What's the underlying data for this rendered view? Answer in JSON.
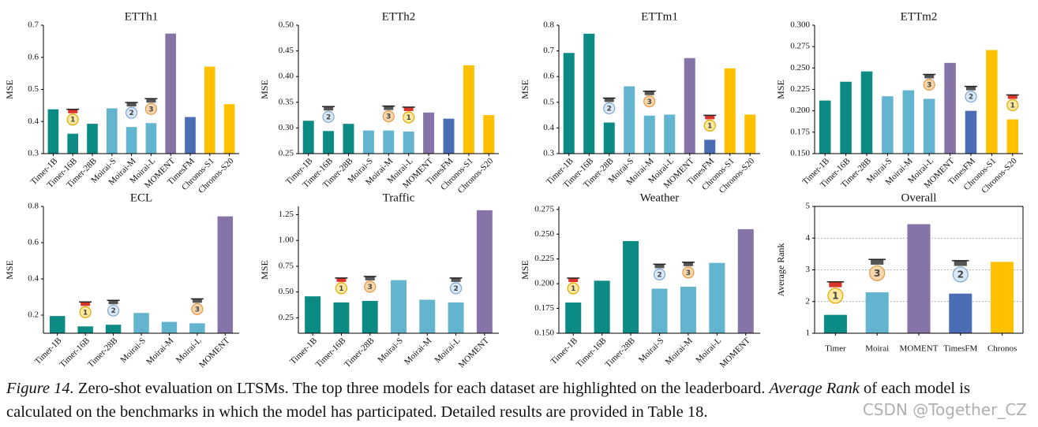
{
  "chart_data": [
    {
      "type": "bar",
      "title": "ETTh1",
      "ylabel": "MSE",
      "categories": [
        "Timer-1B",
        "Timer-16B",
        "Timer-28B",
        "Moirai-S",
        "Moirai-M",
        "Moirai-L",
        "MOMENT",
        "TimesFM",
        "Chronos-S1",
        "Chronos-S20"
      ],
      "values": [
        0.438,
        0.362,
        0.393,
        0.441,
        0.383,
        0.395,
        0.674,
        0.414,
        0.571,
        0.454
      ],
      "colors": [
        "#0b8b84",
        "#0b8b84",
        "#0b8b84",
        "#62b4cf",
        "#62b4cf",
        "#62b4cf",
        "#8673a8",
        "#4a6db4",
        "#ffc000",
        "#ffc000"
      ],
      "medals": [
        null,
        1,
        null,
        null,
        2,
        3,
        null,
        null,
        null,
        null
      ],
      "ylim": [
        0.3,
        0.7
      ],
      "yticks": [
        0.3,
        0.4,
        0.5,
        0.6,
        0.7
      ],
      "grid": false
    },
    {
      "type": "bar",
      "title": "ETTh2",
      "ylabel": "MSE",
      "categories": [
        "Timer-1B",
        "Timer-16B",
        "Timer-28B",
        "Moirai-S",
        "Moirai-M",
        "Moirai-L",
        "MOMENT",
        "TimesFM",
        "Chronos-S1",
        "Chronos-S20"
      ],
      "values": [
        0.314,
        0.294,
        0.308,
        0.295,
        0.295,
        0.293,
        0.33,
        0.318,
        0.422,
        0.325
      ],
      "colors": [
        "#0b8b84",
        "#0b8b84",
        "#0b8b84",
        "#62b4cf",
        "#62b4cf",
        "#62b4cf",
        "#8673a8",
        "#4a6db4",
        "#ffc000",
        "#ffc000"
      ],
      "medals": [
        null,
        2,
        null,
        null,
        3,
        1,
        null,
        null,
        null,
        null
      ],
      "ylim": [
        0.25,
        0.5
      ],
      "yticks": [
        0.25,
        {
          "value": 0.3,
          "label": "0.30"
        },
        0.35,
        {
          "value": 0.4,
          "label": "0.40"
        },
        0.45,
        {
          "value": 0.5,
          "label": "0.50"
        }
      ],
      "grid": false
    },
    {
      "type": "bar",
      "title": "ETTm1",
      "ylabel": "MSE",
      "categories": [
        "Timer-1B",
        "Timer-16B",
        "Timer-28B",
        "Moirai-S",
        "Moirai-M",
        "Moirai-L",
        "MOMENT",
        "TimesFM",
        "Chronos-S1",
        "Chronos-S20"
      ],
      "values": [
        0.692,
        0.767,
        0.421,
        0.562,
        0.448,
        0.452,
        0.672,
        0.354,
        0.632,
        0.452
      ],
      "colors": [
        "#0b8b84",
        "#0b8b84",
        "#0b8b84",
        "#62b4cf",
        "#62b4cf",
        "#62b4cf",
        "#8673a8",
        "#4a6db4",
        "#ffc000",
        "#ffc000"
      ],
      "medals": [
        null,
        null,
        2,
        null,
        3,
        null,
        null,
        1,
        null,
        null
      ],
      "ylim": [
        0.3,
        0.8
      ],
      "yticks": [
        0.3,
        0.4,
        0.5,
        0.6,
        0.7,
        0.8
      ],
      "grid": false
    },
    {
      "type": "bar",
      "title": "ETTm2",
      "ylabel": "MSE",
      "categories": [
        "Timer-1B",
        "Timer-16B",
        "Timer-28B",
        "Moirai-S",
        "Moirai-M",
        "Moirai-L",
        "MOMENT",
        "TimesFM",
        "Chronos-S1",
        "Chronos-S20"
      ],
      "values": [
        0.212,
        0.234,
        0.246,
        0.217,
        0.224,
        0.214,
        0.256,
        0.2,
        0.271,
        0.19
      ],
      "colors": [
        "#0b8b84",
        "#0b8b84",
        "#0b8b84",
        "#62b4cf",
        "#62b4cf",
        "#62b4cf",
        "#8673a8",
        "#4a6db4",
        "#ffc000",
        "#ffc000"
      ],
      "medals": [
        null,
        null,
        null,
        null,
        null,
        3,
        null,
        2,
        null,
        1
      ],
      "ylim": [
        0.15,
        0.3
      ],
      "yticks": [
        {
          "value": 0.15,
          "label": "0.150"
        },
        0.175,
        {
          "value": 0.2,
          "label": "0.200"
        },
        0.225,
        {
          "value": 0.25,
          "label": "0.250"
        },
        0.275,
        {
          "value": 0.3,
          "label": "0.300"
        }
      ],
      "grid": false
    },
    {
      "type": "bar",
      "title": "ECL",
      "ylabel": "MSE",
      "categories": [
        "Timer-1B",
        "Timer-16B",
        "Timer-28B",
        "Moirai-S",
        "Moirai-M",
        "Moirai-L",
        "MOMENT"
      ],
      "values": [
        0.195,
        0.138,
        0.147,
        0.212,
        0.163,
        0.155,
        0.745
      ],
      "colors": [
        "#0b8b84",
        "#0b8b84",
        "#0b8b84",
        "#62b4cf",
        "#62b4cf",
        "#62b4cf",
        "#8673a8"
      ],
      "medals": [
        null,
        1,
        2,
        null,
        null,
        3,
        null
      ],
      "ylim": [
        0.1,
        0.8
      ],
      "yticks": [
        0.2,
        0.4,
        0.6,
        0.8
      ],
      "grid": false
    },
    {
      "type": "bar",
      "title": "Traffic",
      "ylabel": "MSE",
      "categories": [
        "Timer-1B",
        "Timer-16B",
        "Timer-28B",
        "Moirai-S",
        "Moirai-M",
        "Moirai-L",
        "MOMENT"
      ],
      "values": [
        0.458,
        0.399,
        0.414,
        0.615,
        0.425,
        0.399,
        1.293
      ],
      "colors": [
        "#0b8b84",
        "#0b8b84",
        "#0b8b84",
        "#62b4cf",
        "#62b4cf",
        "#62b4cf",
        "#8673a8"
      ],
      "medals": [
        null,
        1,
        3,
        null,
        null,
        2,
        null
      ],
      "ylim": [
        0.1,
        1.33
      ],
      "yticks": [
        0.25,
        {
          "value": 0.5,
          "label": "0.50"
        },
        0.75,
        {
          "value": 1,
          "label": "1.00"
        },
        1.25
      ],
      "grid": false
    },
    {
      "type": "bar",
      "title": "Weather",
      "ylabel": "MSE",
      "categories": [
        "Timer-1B",
        "Timer-16B",
        "Timer-28B",
        "Moirai-S",
        "Moirai-M",
        "Moirai-L",
        "MOMENT"
      ],
      "values": [
        0.181,
        0.203,
        0.243,
        0.195,
        0.197,
        0.221,
        0.255
      ],
      "colors": [
        "#0b8b84",
        "#0b8b84",
        "#0b8b84",
        "#62b4cf",
        "#62b4cf",
        "#62b4cf",
        "#8673a8"
      ],
      "medals": [
        1,
        null,
        null,
        2,
        3,
        null,
        null
      ],
      "ylim": [
        0.15,
        0.278
      ],
      "yticks": [
        {
          "value": 0.15,
          "label": "0.150"
        },
        0.175,
        {
          "value": 0.2,
          "label": "0.200"
        },
        0.225,
        {
          "value": 0.25,
          "label": "0.250"
        },
        0.275
      ],
      "grid": false
    },
    {
      "type": "bar",
      "title": "Overall",
      "ylabel": "Average Rank",
      "categories": [
        "Timer",
        "Moirai",
        "MOMENT",
        "TimesFM",
        "Chronos"
      ],
      "values": [
        1.58,
        2.29,
        4.44,
        2.25,
        3.25
      ],
      "colors": [
        "#0b8b84",
        "#62b4cf",
        "#8673a8",
        "#4a6db4",
        "#ffc000"
      ],
      "medals": [
        1,
        3,
        null,
        2,
        null
      ],
      "ylim": [
        1,
        5
      ],
      "yticks": [
        1,
        2,
        3,
        4,
        5
      ],
      "grid": true
    }
  ],
  "caption": {
    "label": "Figure 14.",
    "text1": " Zero-shot evaluation on LTSMs. The top three models for each dataset are highlighted on the leaderboard. ",
    "emph": "Average Rank",
    "text2": " of each model is calculated on the benchmarks in which the model has participated. Detailed results are provided in Table 18."
  },
  "watermark": "CSDN @Together_CZ"
}
